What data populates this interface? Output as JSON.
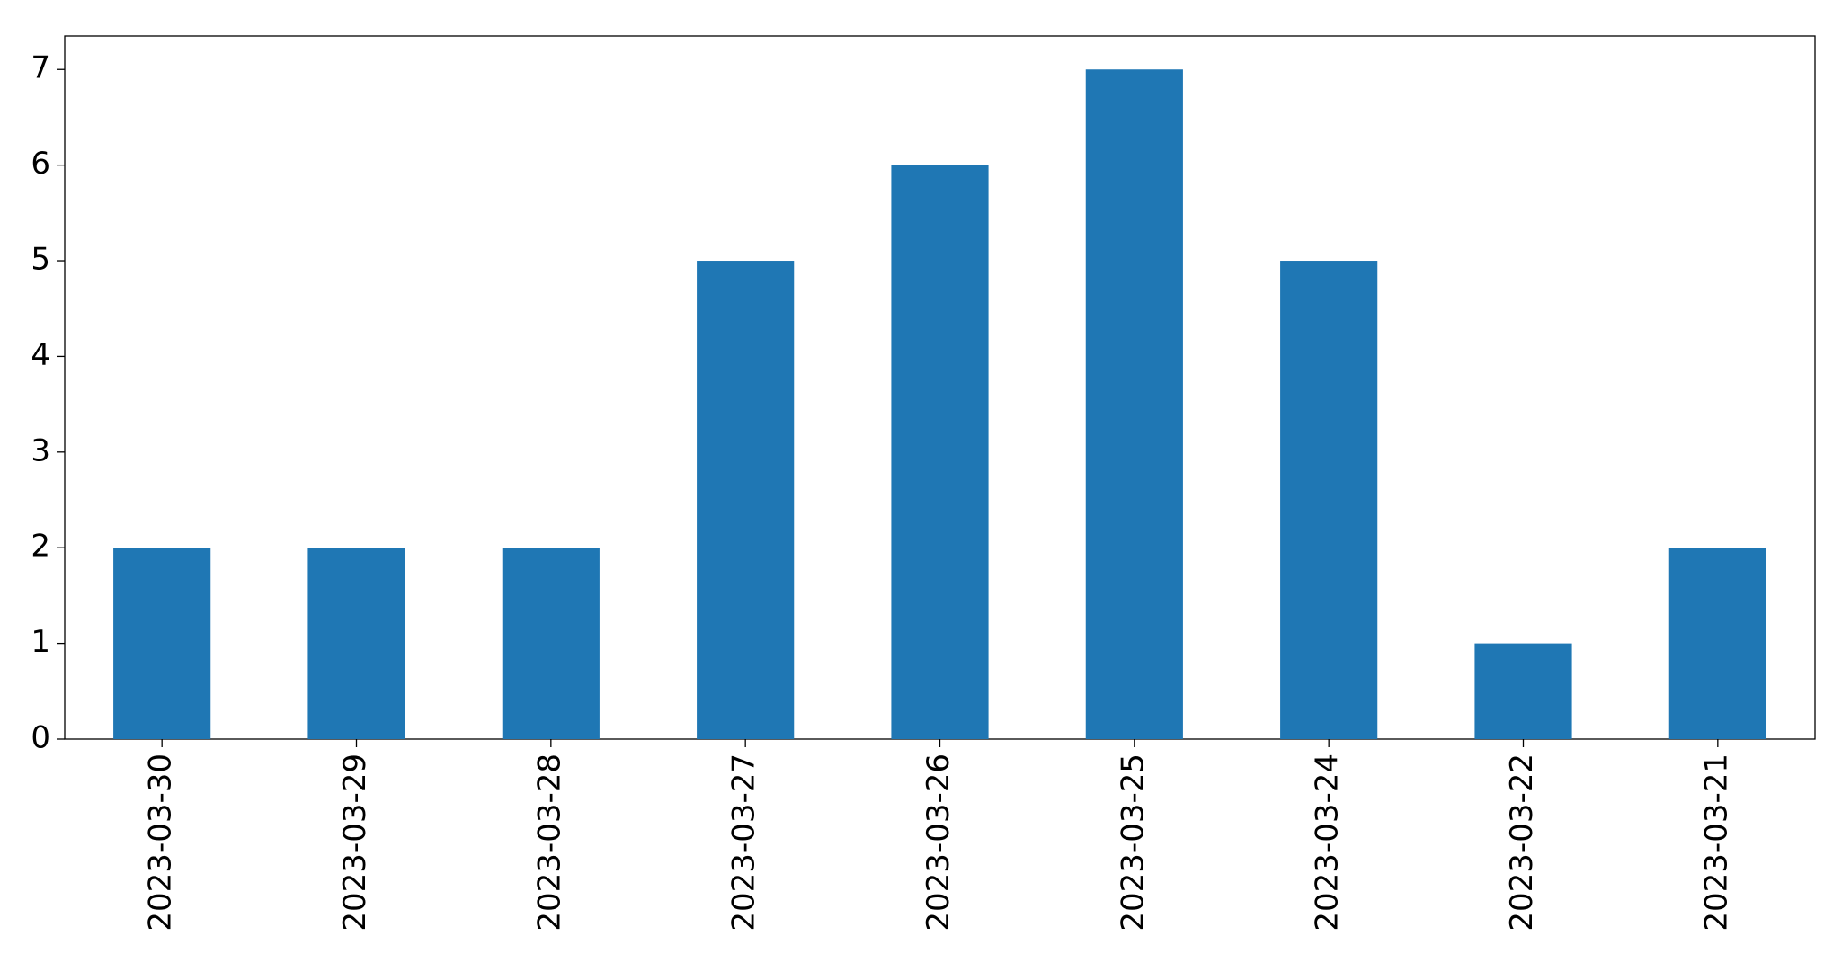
{
  "chart_data": {
    "type": "bar",
    "categories": [
      "2023-03-30",
      "2023-03-29",
      "2023-03-28",
      "2023-03-27",
      "2023-03-26",
      "2023-03-25",
      "2023-03-24",
      "2023-03-22",
      "2023-03-21"
    ],
    "values": [
      2,
      2,
      2,
      5,
      6,
      7,
      5,
      1,
      2
    ],
    "color": "#1f77b4",
    "ylim": [
      0,
      7.35
    ],
    "yticks": [
      0,
      1,
      2,
      3,
      4,
      5,
      6,
      7
    ],
    "grid": false
  }
}
